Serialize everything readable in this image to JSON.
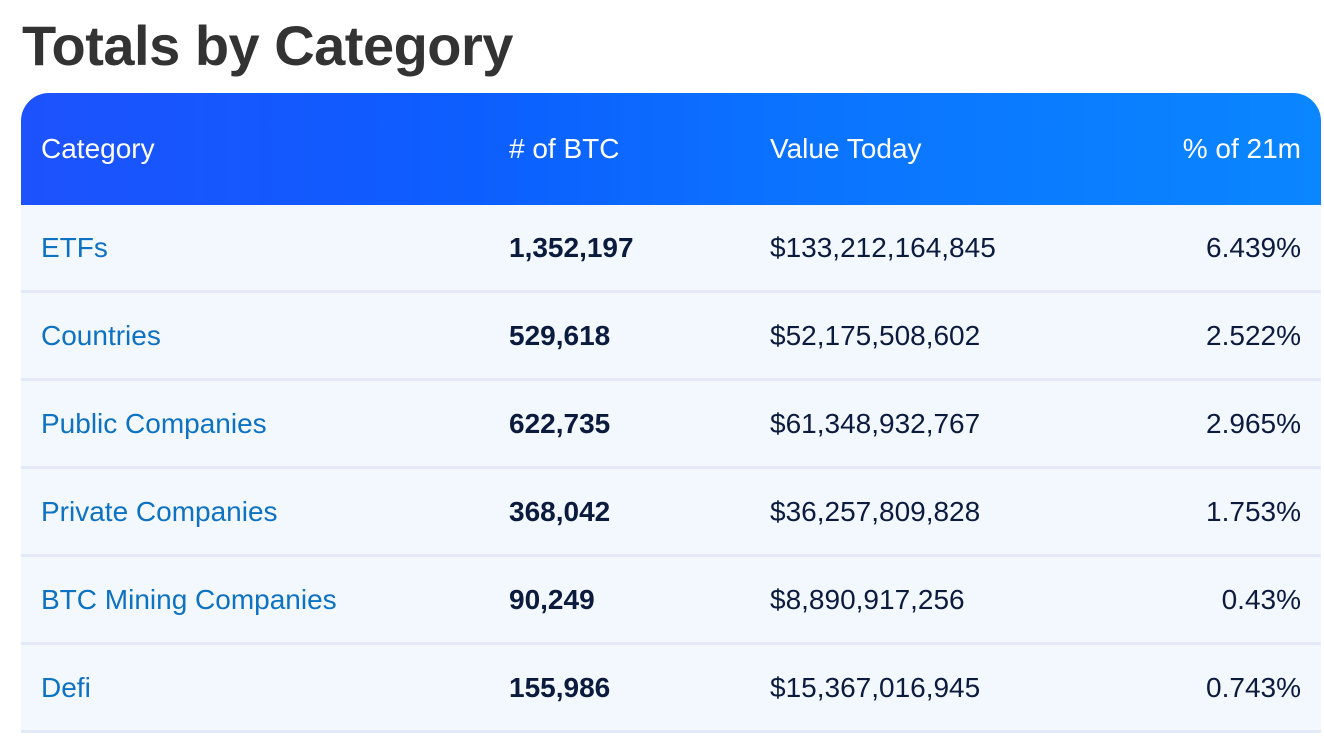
{
  "page": {
    "title": "Totals by Category"
  },
  "table": {
    "columns": [
      "Category",
      "# of BTC",
      "Value Today",
      "% of 21m"
    ],
    "rows": [
      {
        "category": "ETFs",
        "btc": "1,352,197",
        "value": "$133,212,164,845",
        "pct": "6.439%"
      },
      {
        "category": "Countries",
        "btc": "529,618",
        "value": "$52,175,508,602",
        "pct": "2.522%"
      },
      {
        "category": "Public Companies",
        "btc": "622,735",
        "value": "$61,348,932,767",
        "pct": "2.965%"
      },
      {
        "category": "Private Companies",
        "btc": "368,042",
        "value": "$36,257,809,828",
        "pct": "1.753%"
      },
      {
        "category": "BTC Mining Companies",
        "btc": "90,249",
        "value": "$8,890,917,256",
        "pct": "0.43%"
      },
      {
        "category": "Defi",
        "btc": "155,986",
        "value": "$15,367,016,945",
        "pct": "0.743%"
      }
    ]
  },
  "colors": {
    "header_gradient_start": "#1d52fc",
    "header_gradient_end": "#0a86ff",
    "link": "#0d72c2",
    "row_bg": "#f3f7fe",
    "title": "#333333"
  }
}
